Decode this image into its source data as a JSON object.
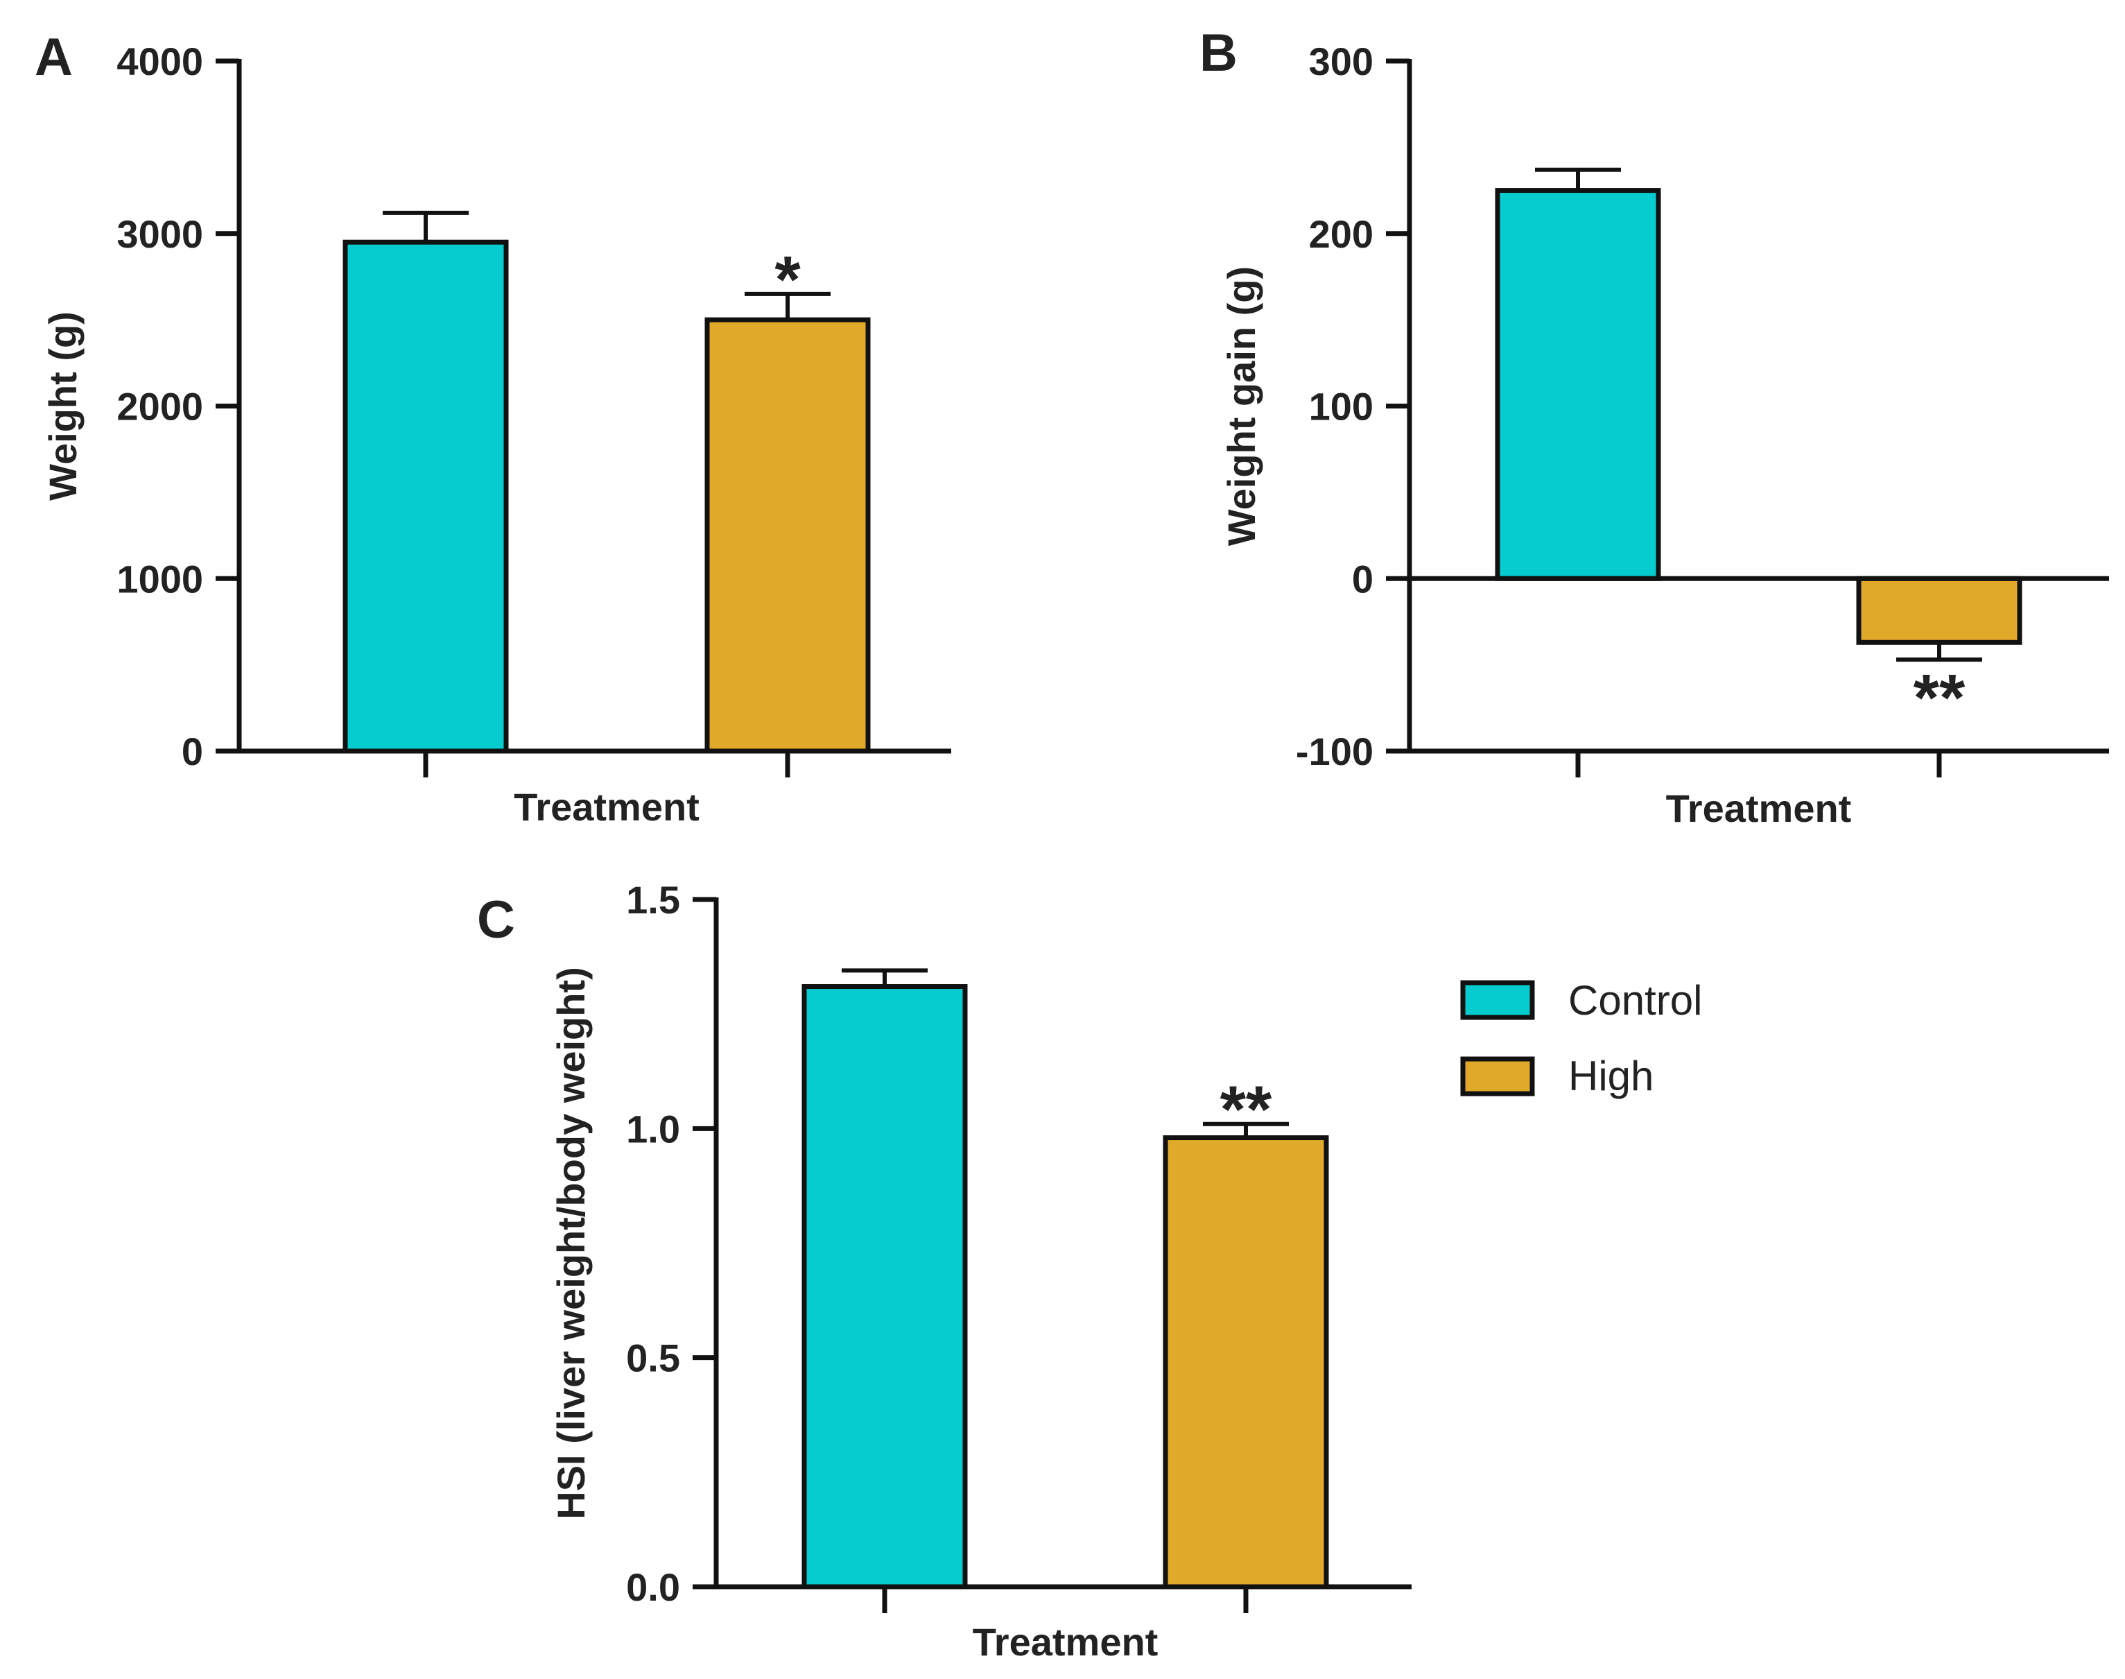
{
  "colors": {
    "control": "#06CCCF",
    "high": "#E1A92A",
    "stroke": "#111111",
    "text": "#222222"
  },
  "legend": [
    {
      "name": "Control",
      "color": "#06CCCF"
    },
    {
      "name": "High",
      "color": "#E1A92A"
    }
  ],
  "chart_data": [
    {
      "panel": "A",
      "type": "bar",
      "xlabel": "Treatment",
      "ylabel": "Weight (g)",
      "ylim": [
        0,
        4000
      ],
      "yticks": [
        0,
        1000,
        2000,
        3000,
        4000
      ],
      "series": [
        {
          "name": "Control",
          "value": 2950,
          "error": 170,
          "sig": ""
        },
        {
          "name": "High",
          "value": 2500,
          "error": 150,
          "sig": "*"
        }
      ]
    },
    {
      "panel": "B",
      "type": "bar",
      "xlabel": "Treatment",
      "ylabel": "Weight gain (g)",
      "ylim": [
        -100,
        300
      ],
      "yticks": [
        -100,
        0,
        100,
        200,
        300
      ],
      "series": [
        {
          "name": "Control",
          "value": 225,
          "error": 12,
          "sig": ""
        },
        {
          "name": "High",
          "value": -37,
          "error": 10,
          "sig": "**"
        }
      ]
    },
    {
      "panel": "C",
      "type": "bar",
      "xlabel": "Treatment",
      "ylabel": "HSI (liver weight/body weight)",
      "ylim": [
        0,
        1.5
      ],
      "yticks": [
        0.0,
        0.5,
        1.0,
        1.5
      ],
      "ytick_labels": [
        "0.0",
        "0.5",
        "1.0",
        "1.5"
      ],
      "series": [
        {
          "name": "Control",
          "value": 1.31,
          "error": 0.035,
          "sig": ""
        },
        {
          "name": "High",
          "value": 0.98,
          "error": 0.03,
          "sig": "**"
        }
      ]
    }
  ]
}
